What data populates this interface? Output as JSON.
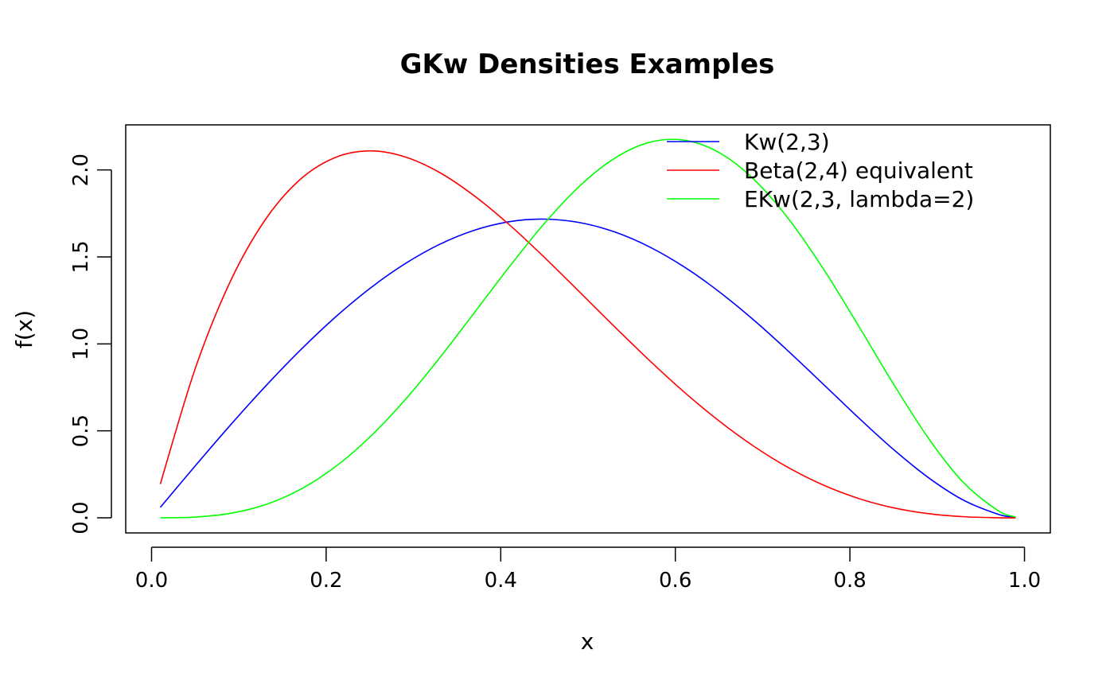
{
  "chart_data": {
    "type": "line",
    "title": "GKw Densities Examples",
    "xlabel": "x",
    "ylabel": "f(x)",
    "xlim": [
      -0.0296,
      1.0296
    ],
    "ylim": [
      -0.0868,
      2.2591
    ],
    "xticks": [
      0.0,
      0.2,
      0.4,
      0.6,
      0.8,
      1.0
    ],
    "xtick_labels": [
      "0.0",
      "0.2",
      "0.4",
      "0.6",
      "0.8",
      "1.0"
    ],
    "yticks": [
      0.0,
      0.5,
      1.0,
      1.5,
      2.0
    ],
    "ytick_labels": [
      "0.0",
      "0.5",
      "1.0",
      "1.5",
      "2.0"
    ],
    "grid": false,
    "legend_position": "top-right",
    "x": [
      0.01,
      0.05,
      0.09,
      0.13,
      0.17,
      0.21,
      0.25,
      0.29,
      0.33,
      0.37,
      0.41,
      0.45,
      0.49,
      0.53,
      0.57,
      0.61,
      0.65,
      0.69,
      0.73,
      0.77,
      0.81,
      0.85,
      0.89,
      0.93,
      0.97,
      0.99
    ],
    "series": [
      {
        "name": "Kw(2,3)",
        "color": "#0000ff",
        "values": [
          0.06,
          0.2985,
          0.5313,
          0.7539,
          0.9619,
          1.1513,
          1.3184,
          1.4597,
          1.5723,
          1.6538,
          1.7025,
          1.7172,
          1.6977,
          1.6444,
          1.5587,
          1.443,
          1.3007,
          1.1363,
          0.9556,
          0.7657,
          0.5748,
          0.3927,
          0.2308,
          0.1018,
          0.0203,
          0.0024
        ]
      },
      {
        "name": "Beta(2,4) equivalent",
        "color": "#ff0000",
        "values": [
          0.1941,
          0.8574,
          1.3565,
          1.7121,
          1.9441,
          2.0706,
          2.1094,
          2.0758,
          1.9853,
          1.8501,
          1.6843,
          1.4974,
          1.3,
          1.1005,
          0.9063,
          0.7235,
          0.5574,
          0.4111,
          0.2873,
          0.1874,
          0.1111,
          0.0574,
          0.0237,
          0.0064,
          0.0005,
          0.0
        ]
      },
      {
        "name": "EKw(2,3, lambda=2)",
        "color": "#00ff00",
        "values": [
          0.0,
          0.0045,
          0.0256,
          0.0751,
          0.1622,
          0.2915,
          0.4641,
          0.6761,
          0.9195,
          1.1811,
          1.4444,
          1.6925,
          1.9055,
          2.0657,
          2.1582,
          2.1714,
          2.1004,
          1.9458,
          1.7165,
          1.428,
          1.1028,
          0.7686,
          0.4574,
          0.2031,
          0.0406,
          0.0048
        ]
      }
    ]
  }
}
